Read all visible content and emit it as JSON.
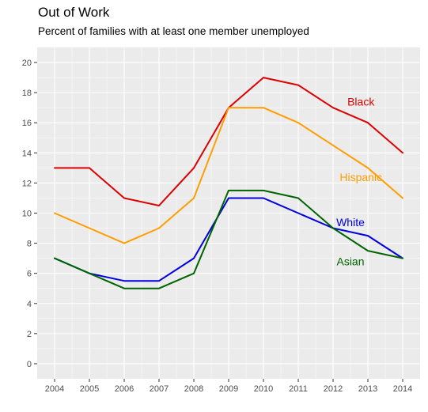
{
  "chart_data": {
    "type": "line",
    "title": "Out of Work",
    "subtitle": "Percent of families with at least one member unemployed",
    "xlabel": "",
    "ylabel": "",
    "x": [
      2004,
      2005,
      2006,
      2007,
      2008,
      2009,
      2010,
      2011,
      2012,
      2013,
      2014
    ],
    "xlim": [
      2003.5,
      2014.5
    ],
    "ylim": [
      -1,
      21
    ],
    "yticks": [
      0,
      2,
      4,
      6,
      8,
      10,
      12,
      14,
      16,
      18,
      20
    ],
    "grid": true,
    "legend": "none",
    "series": [
      {
        "name": "Black",
        "color": "#dd0000",
        "label_x": 2012.8,
        "label_y": 17.4,
        "values": [
          13,
          13,
          11,
          10.5,
          13,
          17,
          19,
          18.5,
          17,
          16,
          14
        ]
      },
      {
        "name": "Hispanic",
        "color": "#ff9d00",
        "label_x": 2012.8,
        "label_y": 12.4,
        "values": [
          10,
          9,
          8,
          9,
          11,
          17,
          17,
          16,
          14.5,
          13,
          11
        ]
      },
      {
        "name": "White",
        "color": "#0000dd",
        "label_x": 2012.5,
        "label_y": 9.4,
        "values": [
          7,
          6,
          5.5,
          5.5,
          7,
          11,
          11,
          10,
          9,
          8.5,
          7
        ]
      },
      {
        "name": "Asian",
        "color": "#006400",
        "label_x": 2012.5,
        "label_y": 6.8,
        "values": [
          7,
          6,
          5,
          5,
          6,
          11.5,
          11.5,
          11,
          9,
          7.5,
          7
        ]
      }
    ]
  }
}
